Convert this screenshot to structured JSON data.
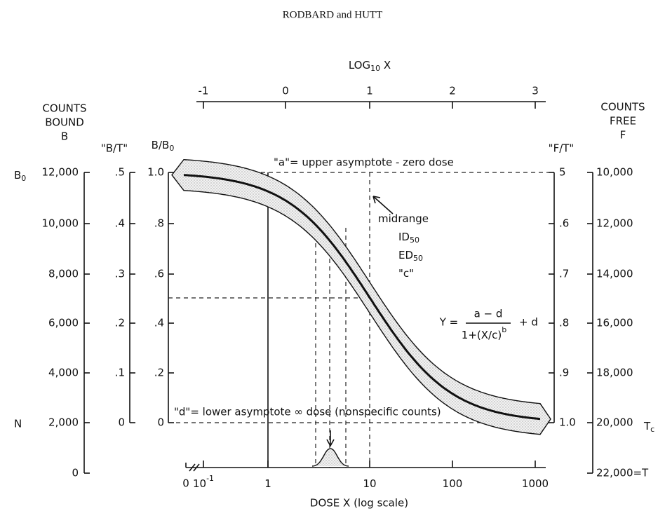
{
  "header": "RODBARD and HUTT",
  "top_axis": {
    "title": [
      "LOG",
      "10",
      " X"
    ],
    "ticks": [
      "-1",
      "0",
      "1",
      "2",
      "3"
    ]
  },
  "counts_bound_axis": {
    "title": [
      "COUNTS",
      "BOUND",
      "B"
    ],
    "ticks": [
      "12,000",
      "10,000",
      "8,000",
      "6,000",
      "4,000",
      "2,000",
      "0"
    ],
    "b0": [
      "B",
      "0"
    ],
    "n": "N"
  },
  "bt_axis": {
    "title": "\"B/T\"",
    "ticks": [
      ".5",
      ".4",
      ".3",
      ".2",
      ".1",
      "0"
    ]
  },
  "bb0_axis": {
    "title": [
      "B/B",
      "0"
    ],
    "ticks": [
      "1.0",
      ".8",
      ".6",
      ".4",
      ".2",
      "0"
    ]
  },
  "ft_axis": {
    "title": "\"F/T\"",
    "ticks": [
      "5",
      ".6",
      ".7",
      ".8",
      ".9",
      "1.0"
    ]
  },
  "counts_free_axis": {
    "title": [
      "COUNTS",
      "FREE",
      "F"
    ],
    "ticks": [
      "10,000",
      "12,000",
      "14,000",
      "16,000",
      "18,000",
      "20,000",
      "22,000=T"
    ],
    "tc": [
      "T",
      "c"
    ]
  },
  "bottom_axis": {
    "title": "DOSE  X  (log scale)",
    "zero": "0",
    "ticks": [
      [
        "10",
        "-1"
      ],
      [
        "1"
      ],
      [
        "10"
      ],
      [
        "100"
      ],
      [
        "1000"
      ]
    ]
  },
  "annotations": {
    "upper": "\"a\"= upper asymptote - zero dose",
    "lower": "\"d\"= lower asymptote ∞ dose (nonspecific counts)",
    "midrange": [
      [
        "midrange"
      ],
      [
        "ID",
        "50"
      ],
      [
        "ED",
        "50"
      ],
      [
        "\"c\""
      ]
    ]
  },
  "formula": {
    "lhs": "Y =",
    "numerator": "a − d",
    "denominator": [
      "1+(X/c)",
      "b"
    ],
    "rhs": "+ d"
  }
}
